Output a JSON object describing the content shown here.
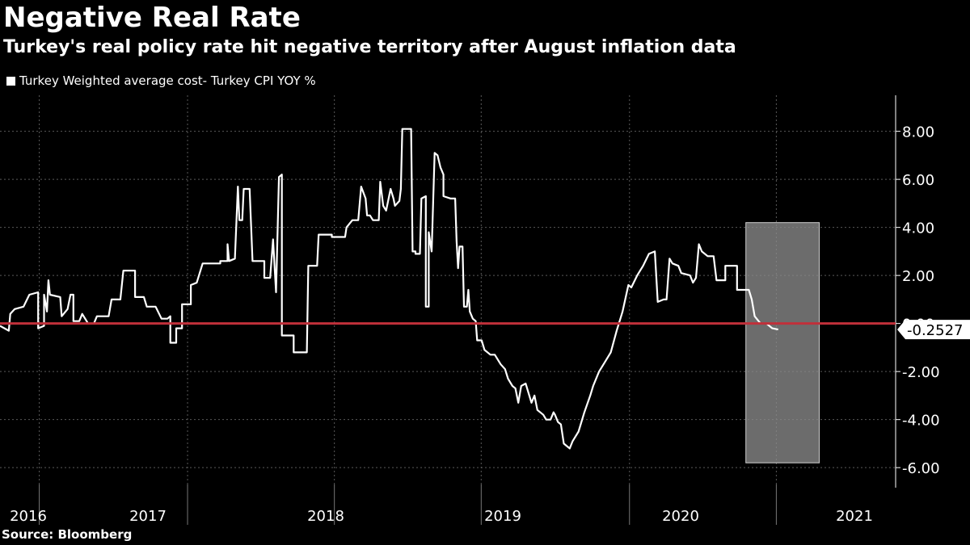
{
  "title": "Negative Real Rate",
  "subtitle": "Turkey's real policy rate hit negative territory after August inflation data",
  "legend_label": "Turkey Weighted average cost- Turkey CPI YOY %",
  "source": "Source: Bloomberg",
  "colors": {
    "background": "#000000",
    "line": "#ffffff",
    "zero_line": "#c0303a",
    "highlight": "#8a8a8a",
    "grid": "#5a5a5a"
  },
  "chart_data": {
    "type": "line",
    "title": "Negative Real Rate",
    "ylabel": "%",
    "ylim": [
      -6.7,
      9.5
    ],
    "xlim": [
      2015.8,
      2021.9
    ],
    "y_ticks": [
      -6,
      -4,
      -2,
      0,
      2,
      4,
      6,
      8
    ],
    "y_tick_labels": [
      "-6.00",
      "-4.00",
      "-2.00",
      "0.00",
      "2.00",
      "4.00",
      "6.00",
      "8.00"
    ],
    "x_categories": [
      "2016",
      "2017",
      "2018",
      "2019",
      "2020",
      "2021"
    ],
    "x_category_centers": [
      2016.0,
      2016.5,
      2017.5,
      2018.5,
      2019.5,
      2020.5
    ],
    "highlight_region": {
      "x_start": 2020.88,
      "x_end": 2021.38,
      "y_min": -5.8,
      "y_max": 4.2
    },
    "zero_line": 0,
    "last_value": -0.2527,
    "last_value_label": "-0.2527",
    "series": [
      {
        "name": "Turkey Weighted average cost- Turkey CPI YOY %",
        "points": [
          [
            2015.8,
            -0.1
          ],
          [
            2015.86,
            -0.3
          ],
          [
            2015.87,
            0.4
          ],
          [
            2015.9,
            0.6
          ],
          [
            2015.96,
            0.7
          ],
          [
            2016.0,
            1.2
          ],
          [
            2016.06,
            1.3
          ],
          [
            2016.06,
            -0.2
          ],
          [
            2016.1,
            -0.1
          ],
          [
            2016.1,
            1.2
          ],
          [
            2016.12,
            0.5
          ],
          [
            2016.13,
            1.8
          ],
          [
            2016.14,
            1.2
          ],
          [
            2016.21,
            1.1
          ],
          [
            2016.22,
            0.3
          ],
          [
            2016.26,
            0.6
          ],
          [
            2016.28,
            1.2
          ],
          [
            2016.3,
            1.2
          ],
          [
            2016.3,
            0.1
          ],
          [
            2016.34,
            0.1
          ],
          [
            2016.36,
            0.4
          ],
          [
            2016.4,
            0.0
          ],
          [
            2016.44,
            0.0
          ],
          [
            2016.46,
            0.3
          ],
          [
            2016.54,
            0.3
          ],
          [
            2016.56,
            1.0
          ],
          [
            2016.62,
            1.0
          ],
          [
            2016.64,
            2.2
          ],
          [
            2016.72,
            2.2
          ],
          [
            2016.72,
            1.1
          ],
          [
            2016.78,
            1.1
          ],
          [
            2016.8,
            0.7
          ],
          [
            2016.86,
            0.7
          ],
          [
            2016.9,
            0.2
          ],
          [
            2016.94,
            0.2
          ],
          [
            2016.96,
            0.3
          ],
          [
            2016.96,
            -0.8
          ],
          [
            2017.0,
            -0.8
          ],
          [
            2017.0,
            -0.2
          ],
          [
            2017.04,
            -0.2
          ],
          [
            2017.04,
            0.8
          ],
          [
            2017.1,
            0.8
          ],
          [
            2017.1,
            1.6
          ],
          [
            2017.14,
            1.7
          ],
          [
            2017.18,
            2.5
          ],
          [
            2017.3,
            2.5
          ],
          [
            2017.3,
            2.6
          ],
          [
            2017.35,
            2.6
          ],
          [
            2017.35,
            3.3
          ],
          [
            2017.36,
            2.6
          ],
          [
            2017.4,
            2.7
          ],
          [
            2017.42,
            5.7
          ],
          [
            2017.43,
            4.3
          ],
          [
            2017.45,
            4.3
          ],
          [
            2017.46,
            5.6
          ],
          [
            2017.5,
            5.6
          ],
          [
            2017.52,
            2.6
          ],
          [
            2017.6,
            2.6
          ],
          [
            2017.6,
            1.9
          ],
          [
            2017.64,
            1.9
          ],
          [
            2017.66,
            3.5
          ],
          [
            2017.68,
            1.3
          ],
          [
            2017.7,
            6.1
          ],
          [
            2017.72,
            6.2
          ],
          [
            2017.72,
            -0.5
          ],
          [
            2017.8,
            -0.5
          ],
          [
            2017.8,
            -1.2
          ],
          [
            2017.89,
            -1.2
          ],
          [
            2017.9,
            2.4
          ],
          [
            2017.96,
            2.4
          ],
          [
            2017.97,
            3.7
          ],
          [
            2018.06,
            3.7
          ],
          [
            2018.06,
            3.6
          ],
          [
            2018.15,
            3.6
          ],
          [
            2018.16,
            4.0
          ],
          [
            2018.2,
            4.3
          ],
          [
            2018.24,
            4.3
          ],
          [
            2018.26,
            5.7
          ],
          [
            2018.29,
            5.2
          ],
          [
            2018.3,
            4.5
          ],
          [
            2018.32,
            4.5
          ],
          [
            2018.34,
            4.3
          ],
          [
            2018.38,
            4.3
          ],
          [
            2018.39,
            5.9
          ],
          [
            2018.41,
            4.9
          ],
          [
            2018.43,
            4.7
          ],
          [
            2018.46,
            5.6
          ],
          [
            2018.48,
            5.2
          ],
          [
            2018.49,
            4.9
          ],
          [
            2018.52,
            5.1
          ],
          [
            2018.53,
            5.6
          ],
          [
            2018.54,
            8.1
          ],
          [
            2018.6,
            8.1
          ],
          [
            2018.61,
            3.0
          ],
          [
            2018.63,
            3.0
          ],
          [
            2018.63,
            2.9
          ],
          [
            2018.66,
            2.9
          ],
          [
            2018.67,
            5.2
          ],
          [
            2018.7,
            5.3
          ],
          [
            2018.7,
            0.7
          ],
          [
            2018.72,
            0.7
          ],
          [
            2018.72,
            3.8
          ],
          [
            2018.74,
            3.0
          ],
          [
            2018.76,
            7.1
          ],
          [
            2018.78,
            7.0
          ],
          [
            2018.8,
            6.5
          ],
          [
            2018.82,
            6.2
          ],
          [
            2018.82,
            5.3
          ],
          [
            2018.87,
            5.2
          ],
          [
            2018.9,
            5.2
          ],
          [
            2018.91,
            3.4
          ],
          [
            2018.92,
            2.3
          ],
          [
            2018.93,
            3.2
          ],
          [
            2018.95,
            3.2
          ],
          [
            2018.96,
            0.7
          ],
          [
            2018.98,
            0.7
          ],
          [
            2018.99,
            1.4
          ],
          [
            2019.0,
            0.5
          ],
          [
            2019.02,
            0.2
          ],
          [
            2019.04,
            0.1
          ],
          [
            2019.05,
            -0.7
          ],
          [
            2019.08,
            -0.7
          ],
          [
            2019.1,
            -1.1
          ],
          [
            2019.14,
            -1.3
          ],
          [
            2019.17,
            -1.3
          ],
          [
            2019.21,
            -1.7
          ],
          [
            2019.24,
            -1.9
          ],
          [
            2019.26,
            -2.3
          ],
          [
            2019.29,
            -2.6
          ],
          [
            2019.31,
            -2.7
          ],
          [
            2019.33,
            -3.3
          ],
          [
            2019.35,
            -2.6
          ],
          [
            2019.38,
            -2.5
          ],
          [
            2019.4,
            -2.9
          ],
          [
            2019.42,
            -3.3
          ],
          [
            2019.44,
            -3.0
          ],
          [
            2019.46,
            -3.6
          ],
          [
            2019.5,
            -3.8
          ],
          [
            2019.52,
            -4.0
          ],
          [
            2019.55,
            -4.0
          ],
          [
            2019.57,
            -3.7
          ],
          [
            2019.58,
            -3.8
          ],
          [
            2019.6,
            -4.1
          ],
          [
            2019.62,
            -4.2
          ],
          [
            2019.64,
            -5.0
          ],
          [
            2019.66,
            -5.1
          ],
          [
            2019.68,
            -5.2
          ],
          [
            2019.7,
            -4.9
          ],
          [
            2019.74,
            -4.5
          ],
          [
            2019.78,
            -3.7
          ],
          [
            2019.82,
            -3.0
          ],
          [
            2019.84,
            -2.6
          ],
          [
            2019.88,
            -2.0
          ],
          [
            2019.92,
            -1.6
          ],
          [
            2019.96,
            -1.2
          ],
          [
            2020.0,
            -0.3
          ],
          [
            2020.04,
            0.5
          ],
          [
            2020.08,
            1.6
          ],
          [
            2020.1,
            1.5
          ],
          [
            2020.14,
            2.0
          ],
          [
            2020.18,
            2.4
          ],
          [
            2020.22,
            2.9
          ],
          [
            2020.26,
            3.0
          ],
          [
            2020.28,
            0.9
          ],
          [
            2020.32,
            1.0
          ],
          [
            2020.34,
            1.0
          ],
          [
            2020.36,
            2.7
          ],
          [
            2020.38,
            2.5
          ],
          [
            2020.42,
            2.4
          ],
          [
            2020.44,
            2.1
          ],
          [
            2020.5,
            2.0
          ],
          [
            2020.52,
            1.7
          ],
          [
            2020.54,
            1.9
          ],
          [
            2020.56,
            3.3
          ],
          [
            2020.58,
            3.0
          ],
          [
            2020.62,
            2.8
          ],
          [
            2020.66,
            2.8
          ],
          [
            2020.68,
            1.8
          ],
          [
            2020.74,
            1.8
          ],
          [
            2020.74,
            2.4
          ],
          [
            2020.82,
            2.4
          ],
          [
            2020.82,
            1.4
          ],
          [
            2020.9,
            1.4
          ],
          [
            2020.92,
            1.0
          ],
          [
            2020.94,
            0.3
          ],
          [
            2020.98,
            0.0
          ],
          [
            2021.02,
            0.0
          ],
          [
            2021.06,
            -0.2
          ],
          [
            2021.1,
            -0.25
          ]
        ]
      }
    ]
  }
}
